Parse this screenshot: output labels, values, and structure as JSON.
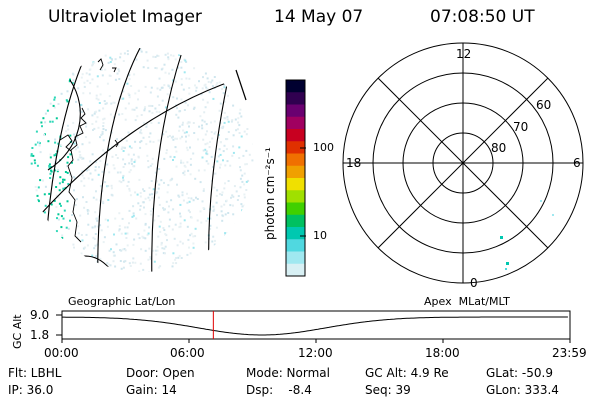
{
  "header": {
    "instrument": "Ultraviolet Imager",
    "date": "14 May 07",
    "time": "07:08:50 UT"
  },
  "colorbar": {
    "unit_label": "photon cm⁻²s⁻¹",
    "ticks": [
      "100",
      "10"
    ],
    "colors": [
      "#000030",
      "#300050",
      "#6a0070",
      "#a00060",
      "#c80020",
      "#e03000",
      "#f07000",
      "#f0a000",
      "#f0e000",
      "#a0e000",
      "#40d000",
      "#00c060",
      "#00c8b0",
      "#50d8e0",
      "#a0e8f0",
      "#d8f0f4"
    ]
  },
  "polar_plot": {
    "mlt_labels": {
      "top": "12",
      "left": "18",
      "right": "6",
      "bottom": "0"
    },
    "lat_labels": [
      "60",
      "70",
      "80"
    ]
  },
  "orbit_plot": {
    "y_axis_label": "GC Alt",
    "y_ticks": [
      "9.0",
      "1.8"
    ],
    "left_title": "Geographic Lat/Lon",
    "right_title": "Apex  MLat/MLT",
    "x_ticks": [
      "00:00",
      "06:00",
      "12:00",
      "18:00",
      "23:59"
    ],
    "current_time_hours": 7.15,
    "marker_color": "#e00000"
  },
  "status": {
    "row1": [
      "Flt: LBHL",
      "Door: Open",
      "Mode: Normal",
      "GC Alt: 4.9 Re",
      "GLat: -50.9"
    ],
    "row2": [
      "IP: 36.0",
      "Gain: 14",
      "Dsp:    -8.4",
      "Seq: 39",
      "GLon: 333.4"
    ]
  }
}
